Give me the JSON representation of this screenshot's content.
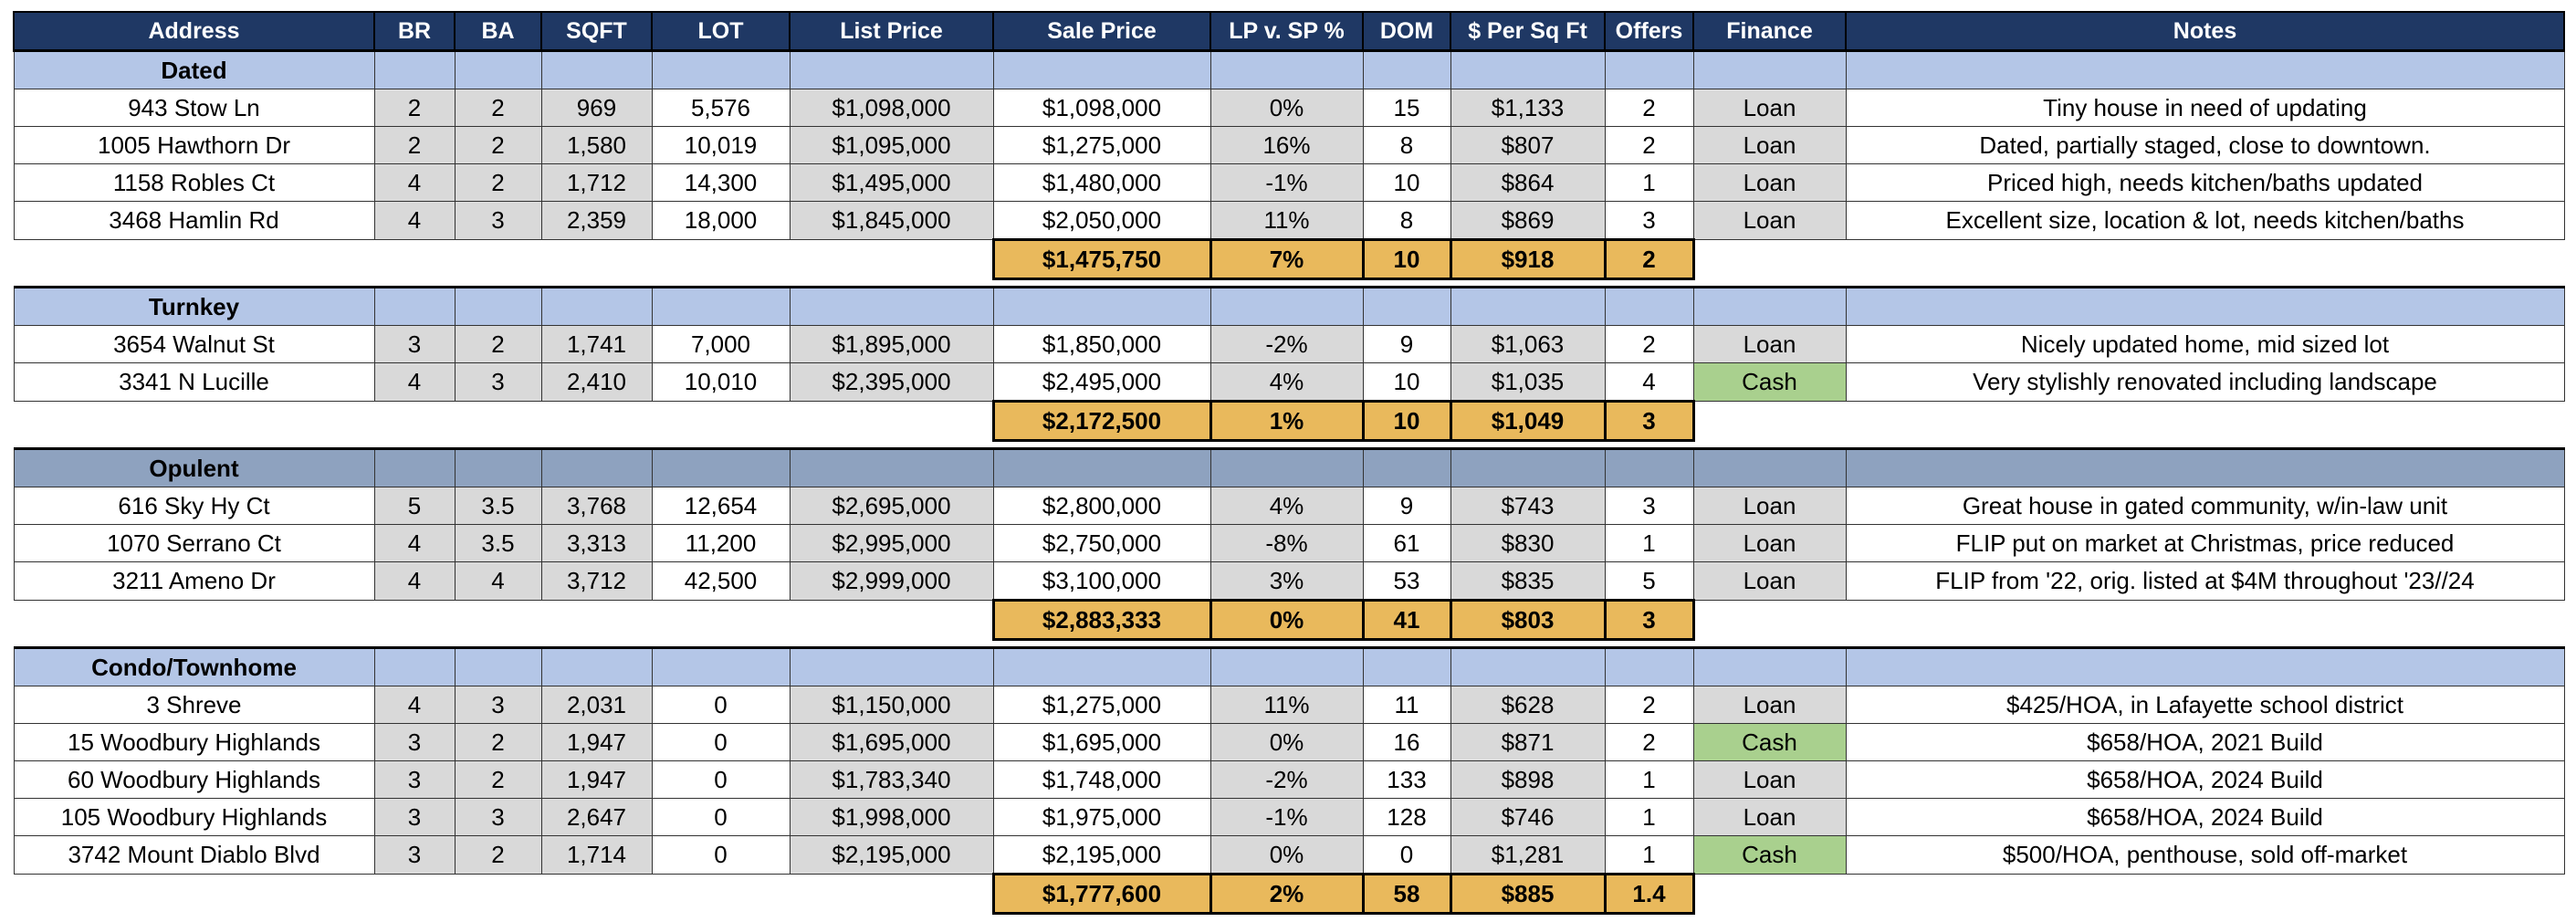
{
  "table": {
    "columns": [
      "Address",
      "BR",
      "BA",
      "SQFT",
      "LOT",
      "List Price",
      "Sale Price",
      "LP v. SP %",
      "DOM",
      "$ Per Sq Ft",
      "Offers",
      "Finance",
      "Notes"
    ],
    "finance_colors": {
      "Loan": "#d9d9d9",
      "Cash": "#a9d08e"
    },
    "groups": [
      {
        "name": "Dated",
        "color": "#b4c6e7",
        "rows": [
          [
            "943 Stow Ln",
            "2",
            "2",
            "969",
            "5,576",
            "$1,098,000",
            "$1,098,000",
            "0%",
            "15",
            "$1,133",
            "2",
            "Loan",
            "Tiny house in need of updating"
          ],
          [
            "1005 Hawthorn Dr",
            "2",
            "2",
            "1,580",
            "10,019",
            "$1,095,000",
            "$1,275,000",
            "16%",
            "8",
            "$807",
            "2",
            "Loan",
            "Dated, partially staged, close to downtown."
          ],
          [
            "1158 Robles Ct",
            "4",
            "2",
            "1,712",
            "14,300",
            "$1,495,000",
            "$1,480,000",
            "-1%",
            "10",
            "$864",
            "1",
            "Loan",
            "Priced high, needs kitchen/baths updated"
          ],
          [
            "3468 Hamlin Rd",
            "4",
            "3",
            "2,359",
            "18,000",
            "$1,845,000",
            "$2,050,000",
            "11%",
            "8",
            "$869",
            "3",
            "Loan",
            "Excellent  size, location & lot, needs kitchen/baths"
          ]
        ],
        "summary": [
          "$1,475,750",
          "7%",
          "10",
          "$918",
          "2"
        ]
      },
      {
        "name": "Turnkey",
        "color": "#b4c6e7",
        "rows": [
          [
            "3654 Walnut St",
            "3",
            "2",
            "1,741",
            "7,000",
            "$1,895,000",
            "$1,850,000",
            "-2%",
            "9",
            "$1,063",
            "2",
            "Loan",
            "Nicely updated home, mid sized lot"
          ],
          [
            "3341 N Lucille",
            "4",
            "3",
            "2,410",
            "10,010",
            "$2,395,000",
            "$2,495,000",
            "4%",
            "10",
            "$1,035",
            "4",
            "Cash",
            "Very stylishly renovated including landscape"
          ]
        ],
        "summary": [
          "$2,172,500",
          "1%",
          "10",
          "$1,049",
          "3"
        ]
      },
      {
        "name": "Opulent",
        "color": "#8ea2bf",
        "rows": [
          [
            "616 Sky Hy Ct",
            "5",
            "3.5",
            "3,768",
            "12,654",
            "$2,695,000",
            "$2,800,000",
            "4%",
            "9",
            "$743",
            "3",
            "Loan",
            "Great house in gated community, w/in-law unit"
          ],
          [
            "1070 Serrano Ct",
            "4",
            "3.5",
            "3,313",
            "11,200",
            "$2,995,000",
            "$2,750,000",
            "-8%",
            "61",
            "$830",
            "1",
            "Loan",
            "FLIP put on market at Christmas, price reduced"
          ],
          [
            "3211 Ameno Dr",
            "4",
            "4",
            "3,712",
            "42,500",
            "$2,999,000",
            "$3,100,000",
            "3%",
            "53",
            "$835",
            "5",
            "Loan",
            "FLIP from '22, orig. listed at $4M throughout '23//24"
          ]
        ],
        "summary": [
          "$2,883,333",
          "0%",
          "41",
          "$803",
          "3"
        ]
      },
      {
        "name": "Condo/Townhome",
        "color": "#b4c6e7",
        "rows": [
          [
            "3 Shreve",
            "4",
            "3",
            "2,031",
            "0",
            "$1,150,000",
            "$1,275,000",
            "11%",
            "11",
            "$628",
            "2",
            "Loan",
            "$425/HOA, in Lafayette school district"
          ],
          [
            "15 Woodbury Highlands",
            "3",
            "2",
            "1,947",
            "0",
            "$1,695,000",
            "$1,695,000",
            "0%",
            "16",
            "$871",
            "2",
            "Cash",
            "$658/HOA, 2021 Build"
          ],
          [
            "60 Woodbury Highlands",
            "3",
            "2",
            "1,947",
            "0",
            "$1,783,340",
            "$1,748,000",
            "-2%",
            "133",
            "$898",
            "1",
            "Loan",
            "$658/HOA, 2024 Build"
          ],
          [
            "105 Woodbury Highlands",
            "3",
            "3",
            "2,647",
            "0",
            "$1,998,000",
            "$1,975,000",
            "-1%",
            "128",
            "$746",
            "1",
            "Loan",
            "$658/HOA, 2024 Build"
          ],
          [
            "3742 Mount Diablo Blvd",
            "3",
            "2",
            "1,714",
            "0",
            "$2,195,000",
            "$2,195,000",
            "0%",
            "0",
            "$1,281",
            "1",
            "Cash",
            "$500/HOA, penthouse, sold off-market"
          ]
        ],
        "summary": [
          "$1,777,600",
          "2%",
          "58",
          "$885",
          "1.4"
        ]
      }
    ]
  }
}
